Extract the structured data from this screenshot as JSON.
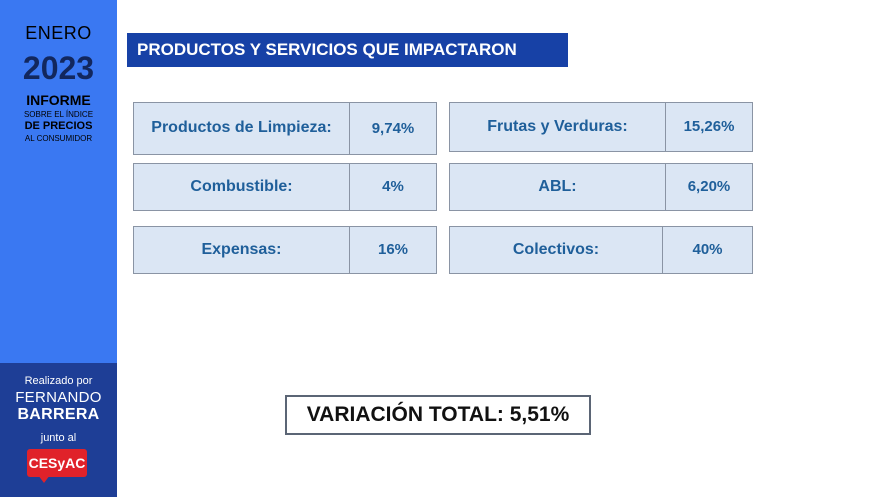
{
  "sidebar": {
    "month": "ENERO",
    "year": "2023",
    "informe": "INFORME",
    "sobre": "SOBRE EL ÍNDICE",
    "precios": "DE PRECIOS",
    "consumidor": "AL CONSUMIDOR",
    "realizado": "Realizado por",
    "first_name": "FERNANDO",
    "last_name": "BARRERA",
    "junto": "junto al",
    "logo": "CESyAC"
  },
  "title": "PRODUCTOS Y SERVICIOS QUE IMPACTARON",
  "items_left": [
    {
      "label": "Productos de Limpieza:",
      "value": "9,74%"
    },
    {
      "label": "Combustible:",
      "value": "4%"
    },
    {
      "label": "Expensas:",
      "value": "16%"
    }
  ],
  "items_right": [
    {
      "label": "Frutas y Verduras:",
      "value": "15,26%"
    },
    {
      "label": "ABL:",
      "value": "6,20%"
    },
    {
      "label": "Colectivos:",
      "value": "40%"
    }
  ],
  "total": "VARIACIÓN TOTAL: 5,51%",
  "colors": {
    "sidebar": "#3a78f2",
    "sidebar_bottom": "#1e3e96",
    "title_bg": "#1741a6",
    "cell_bg": "#dbe6f4",
    "cell_text": "#1f5f9a",
    "logo": "#e0222a"
  }
}
